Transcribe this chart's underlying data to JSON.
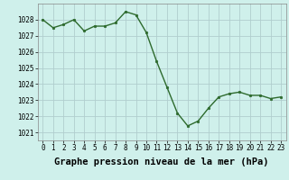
{
  "x": [
    0,
    1,
    2,
    3,
    4,
    5,
    6,
    7,
    8,
    9,
    10,
    11,
    12,
    13,
    14,
    15,
    16,
    17,
    18,
    19,
    20,
    21,
    22,
    23
  ],
  "y": [
    1028.0,
    1027.5,
    1027.7,
    1028.0,
    1027.3,
    1027.6,
    1027.6,
    1027.8,
    1028.5,
    1028.3,
    1027.2,
    1025.4,
    1023.8,
    1022.2,
    1021.4,
    1021.7,
    1022.5,
    1023.2,
    1023.4,
    1023.5,
    1023.3,
    1023.3,
    1023.1,
    1023.2
  ],
  "line_color": "#2d6a2d",
  "marker": "o",
  "marker_size": 1.8,
  "background_color": "#cff0eb",
  "grid_color": "#b0cece",
  "xlabel": "Graphe pression niveau de la mer (hPa)",
  "xlabel_fontsize": 7.5,
  "ylabel_ticks": [
    1021,
    1022,
    1023,
    1024,
    1025,
    1026,
    1027,
    1028
  ],
  "ylim": [
    1020.5,
    1029.0
  ],
  "xlim": [
    -0.5,
    23.5
  ],
  "xtick_labels": [
    "0",
    "1",
    "2",
    "3",
    "4",
    "5",
    "6",
    "7",
    "8",
    "9",
    "10",
    "11",
    "12",
    "13",
    "14",
    "15",
    "16",
    "17",
    "18",
    "19",
    "20",
    "21",
    "22",
    "23"
  ],
  "tick_fontsize": 5.5,
  "line_width": 1.0
}
